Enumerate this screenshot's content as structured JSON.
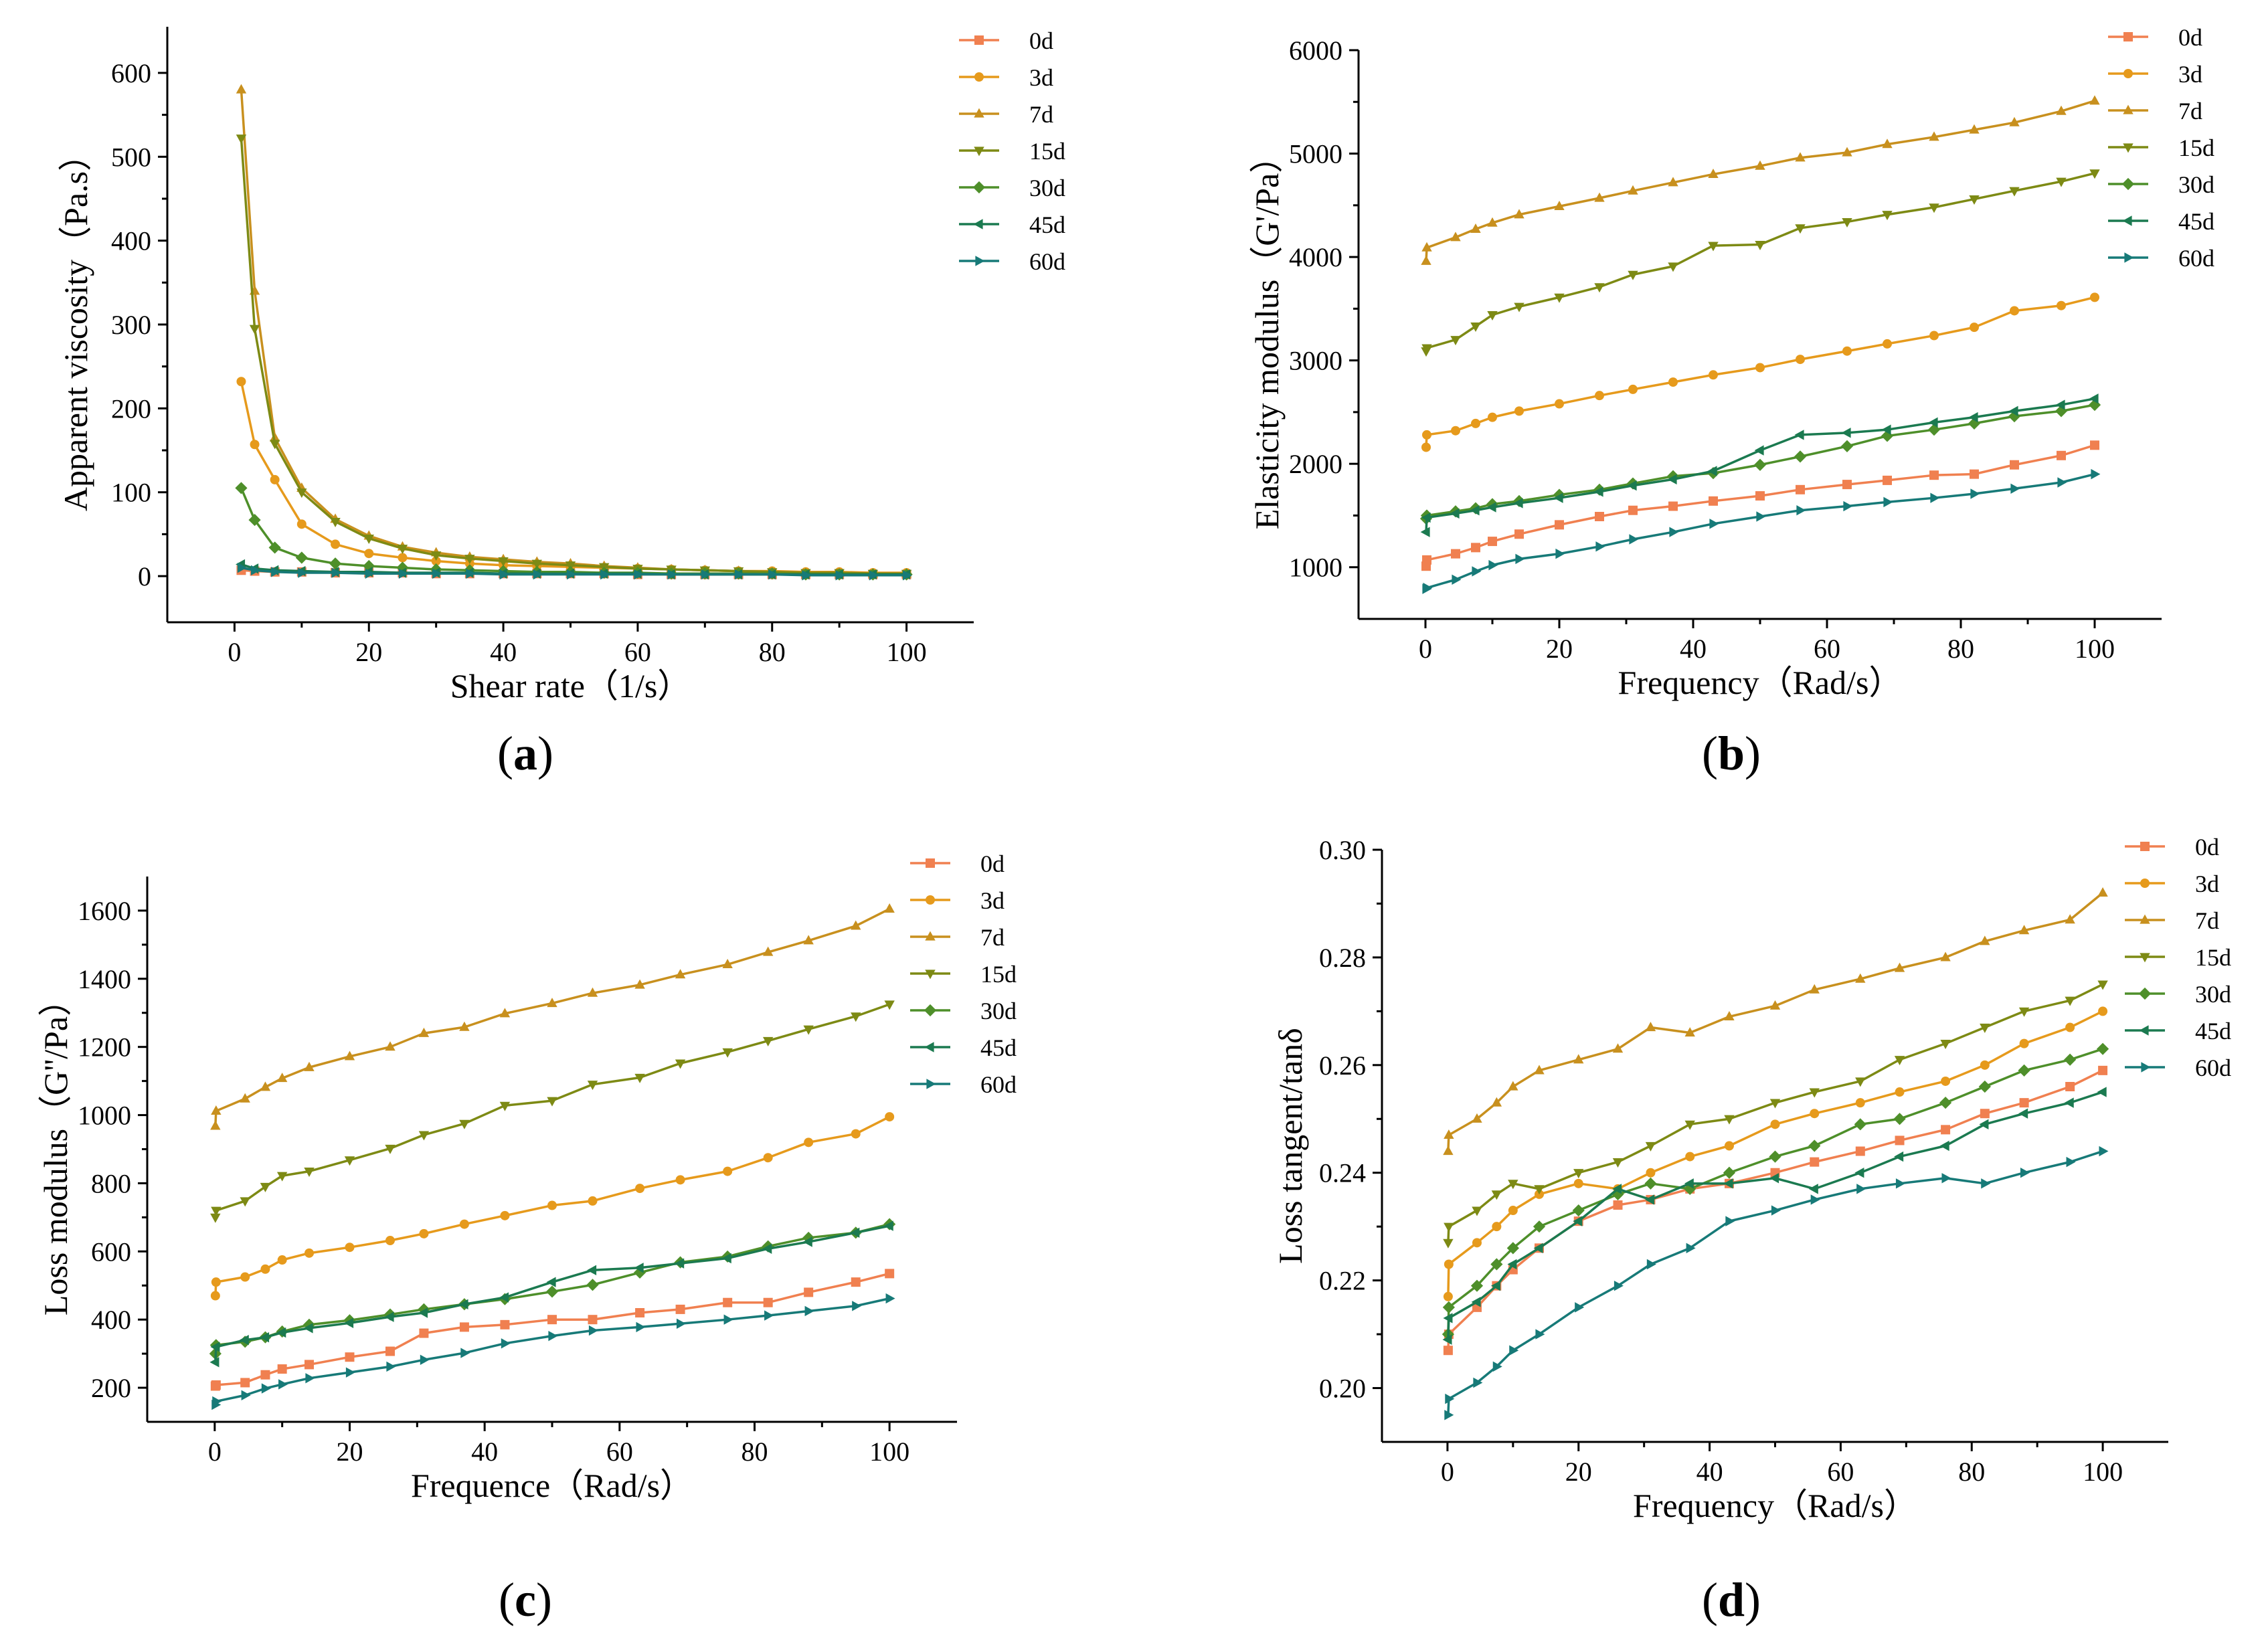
{
  "figure_title": "",
  "colors": {
    "0d": "#F08050",
    "3d": "#E69A1C",
    "7d": "#C8901E",
    "15d": "#7D8A14",
    "30d": "#4E8F2A",
    "45d": "#1B7A50",
    "60d": "#177A78"
  },
  "markers": {
    "0d": "square",
    "3d": "circle",
    "7d": "triangle-up",
    "15d": "triangle-down",
    "30d": "diamond",
    "45d": "triangle-left",
    "60d": "triangle-right"
  },
  "chart_data": [
    {
      "id": "a",
      "panel_label": "a",
      "type": "line",
      "xlabel": "Shear rate（1/s）",
      "ylabel": "Apparent viscosity（Pa.s）",
      "xlim": [
        -10,
        110
      ],
      "ylim": [
        -55,
        655
      ],
      "xticks": [
        0,
        20,
        40,
        60,
        80,
        100
      ],
      "yticks": [
        0,
        100,
        200,
        300,
        400,
        500,
        600
      ],
      "ytick_labels": [
        "0",
        "100",
        "200",
        "300",
        "400",
        "500",
        "600"
      ],
      "legend": [
        "0d",
        "3d",
        "7d",
        "15d",
        "30d",
        "45d",
        "60d"
      ],
      "legend_position": "top-right",
      "x": [
        1,
        3,
        6,
        10,
        15,
        20,
        25,
        30,
        35,
        40,
        45,
        50,
        55,
        60,
        65,
        70,
        75,
        80,
        85,
        90,
        95,
        100
      ],
      "series": [
        {
          "name": "0d",
          "values": [
            7,
            6,
            5,
            5,
            4,
            4,
            4,
            3,
            3,
            3,
            3,
            3,
            3,
            2,
            2,
            2,
            2,
            2,
            2,
            2,
            2,
            2
          ]
        },
        {
          "name": "3d",
          "values": [
            232,
            157,
            115,
            62,
            38,
            27,
            22,
            18,
            15,
            13,
            12,
            11,
            10,
            9,
            8,
            7,
            6,
            6,
            5,
            5,
            4,
            4
          ]
        },
        {
          "name": "7d",
          "values": [
            580,
            340,
            165,
            105,
            68,
            48,
            35,
            28,
            23,
            20,
            17,
            15,
            12,
            10,
            8,
            7,
            6,
            5,
            4,
            4,
            3,
            3
          ]
        },
        {
          "name": "15d",
          "values": [
            522,
            295,
            158,
            100,
            65,
            45,
            33,
            25,
            21,
            18,
            15,
            13,
            11,
            9,
            8,
            7,
            6,
            5,
            4,
            4,
            3,
            3
          ]
        },
        {
          "name": "30d",
          "values": [
            105,
            67,
            34,
            22,
            15,
            12,
            10,
            8,
            7,
            6,
            5,
            5,
            4,
            4,
            3,
            3,
            3,
            3,
            2,
            2,
            2,
            2
          ]
        },
        {
          "name": "45d",
          "values": [
            14,
            9,
            7,
            6,
            5,
            5,
            4,
            4,
            4,
            3,
            3,
            3,
            3,
            3,
            2,
            2,
            2,
            2,
            2,
            2,
            2,
            2
          ]
        },
        {
          "name": "60d",
          "values": [
            10,
            7,
            5,
            4,
            4,
            3,
            3,
            3,
            3,
            2,
            2,
            2,
            2,
            2,
            2,
            2,
            2,
            2,
            1,
            1,
            1,
            1
          ]
        }
      ]
    },
    {
      "id": "b",
      "panel_label": "b",
      "type": "line",
      "xlabel": "Frequency（Rad/s）",
      "ylabel": "Elasticity modulus（G'/Pa）",
      "xlim": [
        -10,
        110
      ],
      "ylim": [
        500,
        6000
      ],
      "xticks": [
        0,
        20,
        40,
        60,
        80,
        100
      ],
      "yticks": [
        1000,
        2000,
        3000,
        4000,
        5000,
        6000
      ],
      "ytick_labels": [
        "1000",
        "2000",
        "3000",
        "4000",
        "5000",
        "6000"
      ],
      "legend": [
        "0d",
        "3d",
        "7d",
        "15d",
        "30d",
        "45d",
        "60d"
      ],
      "legend_position": "top-right",
      "x": [
        0.1,
        0.2,
        4.5,
        7.5,
        10,
        14,
        20,
        26,
        31,
        37,
        43,
        50,
        56,
        63,
        69,
        76,
        82,
        88,
        95,
        100
      ],
      "series": [
        {
          "name": "0d",
          "values": [
            1010,
            1070,
            1130,
            1190,
            1250,
            1320,
            1410,
            1490,
            1550,
            1590,
            1640,
            1690,
            1750,
            1800,
            1840,
            1890,
            1900,
            1990,
            2080,
            2180
          ]
        },
        {
          "name": "3d",
          "values": [
            2160,
            2280,
            2320,
            2390,
            2450,
            2510,
            2580,
            2660,
            2720,
            2790,
            2860,
            2930,
            3010,
            3090,
            3160,
            3240,
            3320,
            3480,
            3530,
            3610
          ]
        },
        {
          "name": "7d",
          "values": [
            3960,
            4090,
            4190,
            4270,
            4330,
            4410,
            4490,
            4570,
            4640,
            4720,
            4800,
            4880,
            4960,
            5010,
            5090,
            5160,
            5230,
            5300,
            5410,
            5510
          ]
        },
        {
          "name": "15d",
          "values": [
            3090,
            3120,
            3200,
            3330,
            3440,
            3520,
            3610,
            3710,
            3830,
            3910,
            4110,
            4120,
            4280,
            4340,
            4410,
            4480,
            4560,
            4640,
            4730,
            4810
          ]
        },
        {
          "name": "30d",
          "values": [
            1470,
            1500,
            1540,
            1570,
            1610,
            1640,
            1700,
            1750,
            1810,
            1880,
            1910,
            1990,
            2070,
            2170,
            2270,
            2330,
            2390,
            2460,
            2510,
            2570
          ]
        },
        {
          "name": "45d",
          "values": [
            1340,
            1480,
            1520,
            1550,
            1580,
            1620,
            1670,
            1730,
            1790,
            1850,
            1930,
            2130,
            2280,
            2300,
            2330,
            2400,
            2450,
            2510,
            2570,
            2630
          ]
        },
        {
          "name": "60d",
          "values": [
            790,
            800,
            880,
            960,
            1020,
            1080,
            1130,
            1200,
            1270,
            1340,
            1420,
            1490,
            1550,
            1590,
            1630,
            1670,
            1710,
            1760,
            1820,
            1900
          ]
        }
      ]
    },
    {
      "id": "c",
      "panel_label": "c",
      "type": "line",
      "xlabel": "Frequence（Rad/s）",
      "ylabel": "Loss modulus（G''/Pa）",
      "xlim": [
        -10,
        110
      ],
      "ylim": [
        100,
        1700
      ],
      "xticks": [
        0,
        20,
        40,
        60,
        80,
        100
      ],
      "yticks": [
        200,
        400,
        600,
        800,
        1000,
        1200,
        1400,
        1600
      ],
      "ytick_labels": [
        "200",
        "400",
        "600",
        "800",
        "1000",
        "1200",
        "1400",
        "1600"
      ],
      "legend": [
        "0d",
        "3d",
        "7d",
        "15d",
        "30d",
        "45d",
        "60d"
      ],
      "legend_position": "top-right",
      "x": [
        0.1,
        0.2,
        4.5,
        7.5,
        10,
        14,
        20,
        26,
        31,
        37,
        43,
        50,
        56,
        63,
        69,
        76,
        82,
        88,
        95,
        100
      ],
      "series": [
        {
          "name": "0d",
          "values": [
            205,
            208,
            215,
            238,
            255,
            268,
            290,
            307,
            360,
            378,
            385,
            400,
            400,
            420,
            430,
            450,
            450,
            480,
            510,
            535
          ]
        },
        {
          "name": "3d",
          "values": [
            470,
            510,
            525,
            548,
            575,
            595,
            612,
            632,
            652,
            680,
            705,
            735,
            748,
            785,
            810,
            835,
            875,
            920,
            945,
            995
          ]
        },
        {
          "name": "7d",
          "values": [
            968,
            1012,
            1048,
            1082,
            1108,
            1140,
            1172,
            1200,
            1240,
            1258,
            1298,
            1328,
            1358,
            1382,
            1412,
            1442,
            1478,
            1512,
            1555,
            1605
          ]
        },
        {
          "name": "15d",
          "values": [
            700,
            720,
            748,
            790,
            822,
            835,
            868,
            902,
            942,
            975,
            1028,
            1042,
            1090,
            1110,
            1152,
            1185,
            1218,
            1252,
            1290,
            1325
          ]
        },
        {
          "name": "30d",
          "values": [
            300,
            325,
            335,
            348,
            365,
            385,
            398,
            415,
            430,
            445,
            460,
            482,
            502,
            538,
            568,
            585,
            615,
            640,
            655,
            680
          ]
        },
        {
          "name": "45d",
          "values": [
            275,
            320,
            340,
            348,
            362,
            375,
            390,
            408,
            420,
            445,
            465,
            510,
            545,
            552,
            565,
            580,
            608,
            628,
            655,
            675
          ]
        },
        {
          "name": "60d",
          "values": [
            150,
            160,
            178,
            198,
            210,
            228,
            245,
            262,
            282,
            302,
            330,
            352,
            368,
            378,
            388,
            400,
            412,
            425,
            440,
            462
          ]
        }
      ]
    },
    {
      "id": "d",
      "panel_label": "d",
      "type": "line",
      "xlabel": "Frequency（Rad/s）",
      "ylabel": "Loss tangent/tanδ",
      "xlim": [
        -10,
        110
      ],
      "ylim": [
        0.19,
        0.3
      ],
      "xticks": [
        0,
        20,
        40,
        60,
        80,
        100
      ],
      "yticks": [
        0.2,
        0.22,
        0.24,
        0.26,
        0.28,
        0.3
      ],
      "ytick_labels": [
        "0.20",
        "0.22",
        "0.24",
        "0.26",
        "0.28",
        "0.30"
      ],
      "legend": [
        "0d",
        "3d",
        "7d",
        "15d",
        "30d",
        "45d",
        "60d"
      ],
      "legend_position": "top-right",
      "x": [
        0.1,
        0.2,
        4.5,
        7.5,
        10,
        14,
        20,
        26,
        31,
        37,
        43,
        50,
        56,
        63,
        69,
        76,
        82,
        88,
        95,
        100
      ],
      "series": [
        {
          "name": "0d",
          "values": [
            0.207,
            0.21,
            0.215,
            0.219,
            0.222,
            0.226,
            0.231,
            0.234,
            0.235,
            0.237,
            0.238,
            0.24,
            0.242,
            0.244,
            0.246,
            0.248,
            0.251,
            0.253,
            0.256,
            0.259
          ]
        },
        {
          "name": "3d",
          "values": [
            0.217,
            0.223,
            0.227,
            0.23,
            0.233,
            0.236,
            0.238,
            0.237,
            0.24,
            0.243,
            0.245,
            0.249,
            0.251,
            0.253,
            0.255,
            0.257,
            0.26,
            0.264,
            0.267,
            0.27
          ]
        },
        {
          "name": "7d",
          "values": [
            0.244,
            0.247,
            0.25,
            0.253,
            0.256,
            0.259,
            0.261,
            0.263,
            0.267,
            0.266,
            0.269,
            0.271,
            0.274,
            0.276,
            0.278,
            0.28,
            0.283,
            0.285,
            0.287,
            0.292
          ]
        },
        {
          "name": "15d",
          "values": [
            0.227,
            0.23,
            0.233,
            0.236,
            0.238,
            0.237,
            0.24,
            0.242,
            0.245,
            0.249,
            0.25,
            0.253,
            0.255,
            0.257,
            0.261,
            0.264,
            0.267,
            0.27,
            0.272,
            0.275
          ]
        },
        {
          "name": "30d",
          "values": [
            0.21,
            0.215,
            0.219,
            0.223,
            0.226,
            0.23,
            0.233,
            0.236,
            0.238,
            0.237,
            0.24,
            0.243,
            0.245,
            0.249,
            0.25,
            0.253,
            0.256,
            0.259,
            0.261,
            0.263
          ]
        },
        {
          "name": "45d",
          "values": [
            0.209,
            0.213,
            0.216,
            0.219,
            0.223,
            0.226,
            0.231,
            0.237,
            0.235,
            0.238,
            0.238,
            0.239,
            0.237,
            0.24,
            0.243,
            0.245,
            0.249,
            0.251,
            0.253,
            0.255
          ]
        },
        {
          "name": "60d",
          "values": [
            0.195,
            0.198,
            0.201,
            0.204,
            0.207,
            0.21,
            0.215,
            0.219,
            0.223,
            0.226,
            0.231,
            0.233,
            0.235,
            0.237,
            0.238,
            0.239,
            0.238,
            0.24,
            0.242,
            0.244
          ]
        }
      ]
    }
  ]
}
